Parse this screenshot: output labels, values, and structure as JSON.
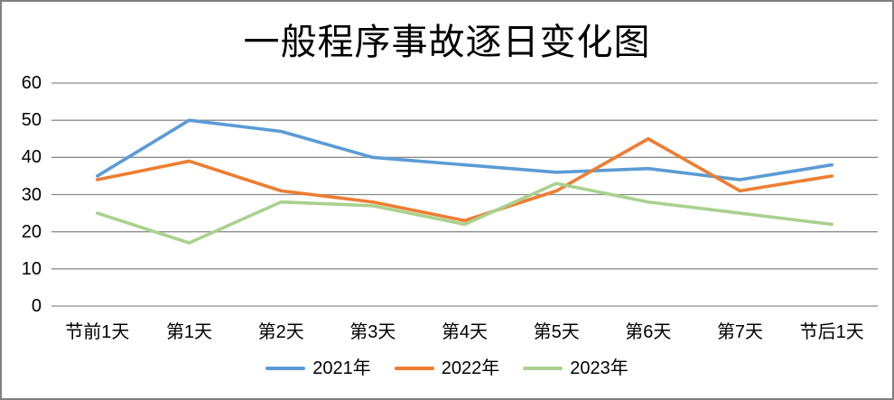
{
  "frame": {
    "background_color": "#ffffff",
    "border_color": "#808080"
  },
  "chart_data": {
    "type": "line",
    "title": "一般程序事故逐日变化图",
    "categories": [
      "节前1天",
      "第1天",
      "第2天",
      "第3天",
      "第4天",
      "第5天",
      "第6天",
      "第7天",
      "节后1天"
    ],
    "series": [
      {
        "name": "2021年",
        "color": "#5B9BD5",
        "values": [
          35,
          50,
          47,
          40,
          38,
          36,
          37,
          34,
          38
        ]
      },
      {
        "name": "2022年",
        "color": "#ED7D31",
        "values": [
          34,
          39,
          31,
          28,
          23,
          31,
          45,
          31,
          35
        ]
      },
      {
        "name": "2023年",
        "color": "#A9D18E",
        "values": [
          25,
          17,
          28,
          27,
          22,
          33,
          28,
          25,
          22
        ]
      }
    ],
    "xlabel": "",
    "ylabel": "",
    "ylim": [
      0,
      60
    ],
    "yticks": [
      0,
      10,
      20,
      30,
      40,
      50,
      60
    ],
    "grid": "horizontal",
    "gridline_color": "#8C8C8C",
    "axis_text_color": "#000000",
    "legend_position": "bottom"
  }
}
